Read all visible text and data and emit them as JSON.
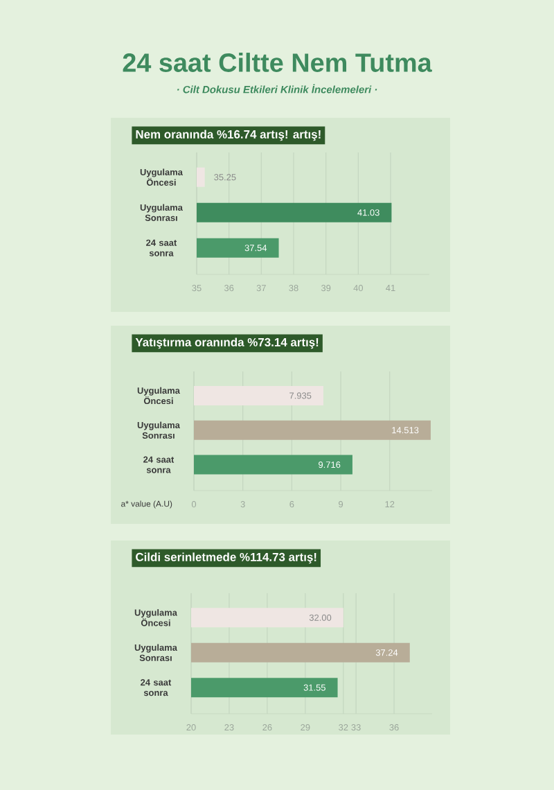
{
  "chart_data": [
    {
      "type": "bar",
      "orientation": "horizontal",
      "title": "Nem oranında %16.74 artış! artış!",
      "annotations": [
        "24 saat Ciltte Nem Tutma",
        "· Cilt Dokusu Etkileri Klinik İncelemeleri ·"
      ],
      "categories": [
        "Uygulama Öncesi",
        "Uygulama Sonrası",
        "24 saat sonra"
      ],
      "values": [
        35.25,
        41.03,
        37.54
      ],
      "value_labels": [
        "35.25",
        "41.03",
        "37.54"
      ],
      "colors": [
        "#efe6e3",
        "#3f8c5e",
        "#4b9a6a"
      ],
      "xlim": [
        35,
        42.2
      ],
      "xticks": [
        35,
        36,
        37,
        38,
        39,
        40,
        41
      ],
      "grid": "x"
    },
    {
      "type": "bar",
      "orientation": "horizontal",
      "title": "Yatıştırma oranında %73.14 artış!",
      "xlabel": "a* value (A.U)",
      "categories": [
        "Uygulama Öncesi",
        "Uygulama Sonrası",
        "24 saat sonra"
      ],
      "values": [
        7.935,
        14.513,
        9.716
      ],
      "value_labels": [
        "7.935",
        "14.513",
        "9.716"
      ],
      "colors": [
        "#efe6e3",
        "#b8ad98",
        "#4b9a6a"
      ],
      "xlim": [
        0,
        14.6
      ],
      "xticks": [
        0,
        3,
        6,
        9,
        12
      ],
      "grid": "x"
    },
    {
      "type": "bar",
      "orientation": "horizontal",
      "title": "Cildi serinletmede %114.73 artış!",
      "categories": [
        "Uygulama Öncesi",
        "Uygulama Sonrası",
        "24 saat sonra"
      ],
      "values": [
        32.0,
        37.24,
        31.55
      ],
      "value_labels": [
        "32.00",
        "37.24",
        "31.55"
      ],
      "colors": [
        "#efe6e3",
        "#b8ad98",
        "#4b9a6a"
      ],
      "xlim": [
        20,
        39
      ],
      "xticks": [
        20,
        23,
        26,
        29,
        32,
        33,
        36
      ],
      "grid": "x"
    }
  ]
}
